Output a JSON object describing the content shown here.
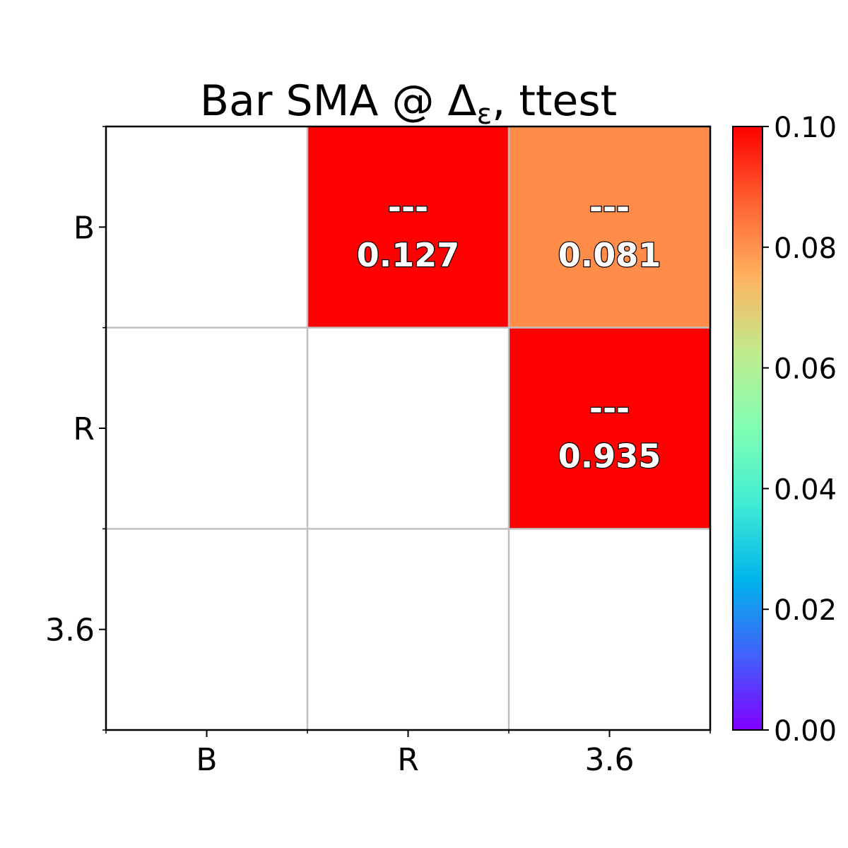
{
  "chart_data": {
    "type": "heatmap",
    "title": "Bar SMA @ Δ",
    "title_subscript": "ε",
    "title_suffix": ", ttest",
    "x_categories": [
      "B",
      "R",
      "3.6"
    ],
    "y_categories": [
      "B",
      "R",
      "3.6"
    ],
    "cells": [
      {
        "row": 0,
        "col": 1,
        "value": 0.127,
        "line1": "---",
        "line2": "0.127"
      },
      {
        "row": 0,
        "col": 2,
        "value": 0.081,
        "line1": "---",
        "line2": "0.081"
      },
      {
        "row": 1,
        "col": 2,
        "value": 0.935,
        "line1": "---",
        "line2": "0.935"
      }
    ],
    "colorbar": {
      "colormap": "rainbow",
      "min": 0.0,
      "max": 0.1,
      "ticks": [
        "0.00",
        "0.02",
        "0.04",
        "0.06",
        "0.08",
        "0.10"
      ]
    },
    "colors": {
      "empty_cell": "#ffffff",
      "grid": "#c0c0c0"
    }
  }
}
